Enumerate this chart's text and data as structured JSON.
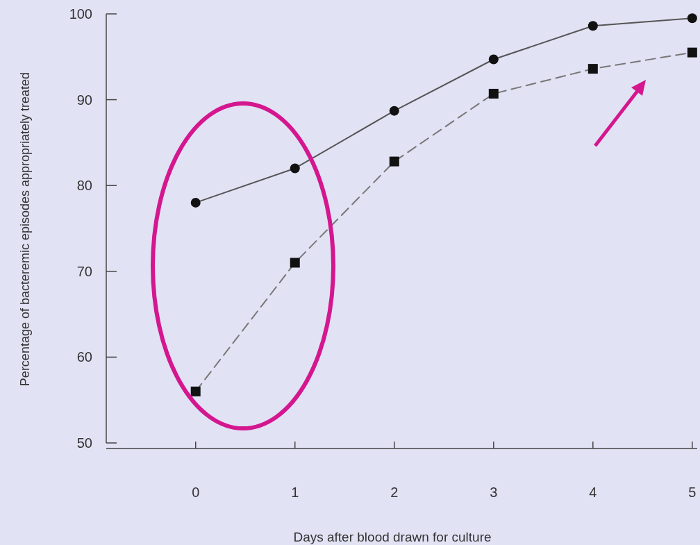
{
  "chart_data": {
    "type": "line",
    "xlabel": "Days after blood drawn for culture",
    "ylabel": "Percentage of bacteremic episodes appropriately treated",
    "x": [
      0,
      1,
      2,
      3,
      4,
      5
    ],
    "series": [
      {
        "color": "#555555",
        "values": [
          78,
          82,
          88.7,
          94.7,
          98.6,
          99.5
        ],
        "marker": "circle",
        "line_style": "solid"
      },
      {
        "color": "#777777",
        "values": [
          56,
          71,
          82.8,
          90.7,
          93.6,
          95.5
        ],
        "marker": "square",
        "line_style": "dashed"
      }
    ],
    "xlim": [
      -0.9,
      5.05
    ],
    "xticks": [
      0,
      1,
      2,
      3,
      4,
      5
    ],
    "ylim": [
      50,
      100
    ],
    "yticks": [
      50,
      60,
      70,
      80,
      90,
      100
    ],
    "grid": false
  }
}
